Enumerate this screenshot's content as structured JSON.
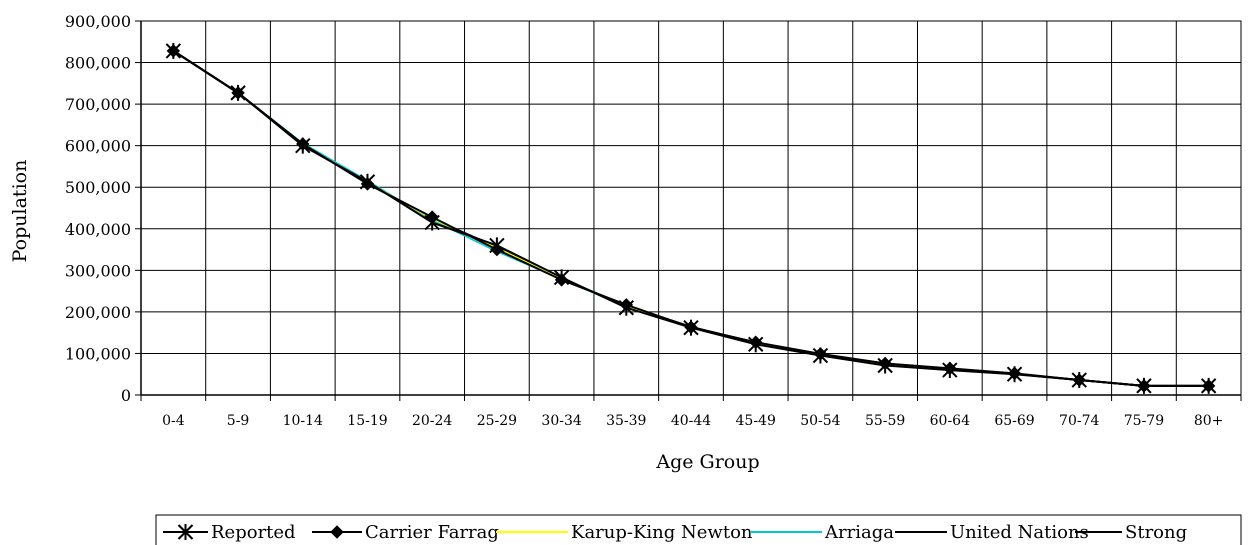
{
  "chart_data": {
    "type": "line",
    "title": "",
    "xlabel": "Age Group",
    "ylabel": "Population",
    "ylim": [
      0,
      900000
    ],
    "yticks": [
      0,
      100000,
      200000,
      300000,
      400000,
      500000,
      600000,
      700000,
      800000,
      900000
    ],
    "yticklabels": [
      "0",
      "100,000",
      "200,000",
      "300,000",
      "400,000",
      "500,000",
      "600,000",
      "700,000",
      "800,000",
      "900,000"
    ],
    "grid": true,
    "legend_position": "bottom",
    "categories": [
      "0-4",
      "5-9",
      "10-14",
      "15-19",
      "20-24",
      "25-29",
      "30-34",
      "35-39",
      "40-44",
      "45-49",
      "50-54",
      "55-59",
      "60-64",
      "65-69",
      "70-74",
      "75-79",
      "80+"
    ],
    "series": [
      {
        "name": "Reported",
        "color": "#000000",
        "marker": "asterisk",
        "values": [
          828000,
          727000,
          600000,
          513000,
          415000,
          360000,
          283000,
          210000,
          162000,
          122000,
          95000,
          71000,
          60000,
          50000,
          36000,
          22000,
          22000
        ]
      },
      {
        "name": "Carrier Farrag",
        "color": "#000000",
        "marker": "diamond",
        "values": [
          828000,
          727000,
          604000,
          508000,
          428000,
          350000,
          277000,
          217000,
          163000,
          127000,
          99000,
          76000,
          64000,
          52000,
          36000,
          22000,
          22000
        ]
      },
      {
        "name": "Karup-King Newton",
        "color": "#ffff00",
        "marker": "none",
        "values": [
          828000,
          727000,
          603000,
          512000,
          424000,
          354000,
          280000,
          213000,
          162000,
          125000,
          96000,
          73000,
          62000,
          51000,
          36000,
          22000,
          22000
        ]
      },
      {
        "name": "Arriaga",
        "color": "#00c8d8",
        "marker": "none",
        "values": [
          828000,
          727000,
          606000,
          516000,
          421000,
          345000,
          279000,
          212000,
          162000,
          124000,
          96000,
          74000,
          62000,
          52000,
          36000,
          22000,
          22000
        ]
      },
      {
        "name": "United Nations",
        "color": "#000000",
        "marker": "none",
        "values": [
          828000,
          727000,
          602000,
          511000,
          424000,
          356000,
          280000,
          214000,
          163000,
          125000,
          97000,
          74000,
          62000,
          51000,
          36000,
          22000,
          22000
        ]
      },
      {
        "name": "Strong",
        "color": "#000000",
        "marker": "none",
        "values": [
          828000,
          727000,
          603000,
          510000,
          425000,
          353000,
          279000,
          215000,
          164000,
          126000,
          97000,
          75000,
          63000,
          51000,
          36000,
          22000,
          22000
        ]
      }
    ]
  }
}
